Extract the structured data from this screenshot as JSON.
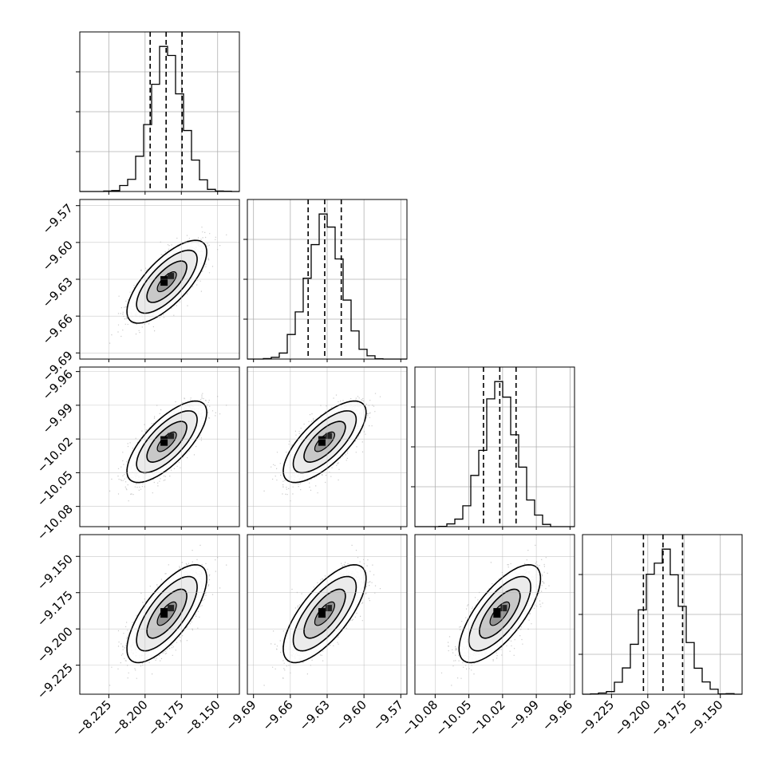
{
  "chart_data": {
    "type": "corner",
    "title": "",
    "grid": true,
    "quantiles": [
      0.16,
      0.5,
      0.84
    ],
    "parameters": [
      {
        "range": [
          -8.245,
          -8.135
        ],
        "ticks": [
          "-8.225",
          "-8.200",
          "-8.175",
          "-8.150"
        ],
        "tick_values": [
          -8.225,
          -8.2,
          -8.175,
          -8.15
        ],
        "mean": -8.185,
        "std": 0.011,
        "q16": -8.1965,
        "q50": -8.1855,
        "q84": -8.1745
      },
      {
        "range": [
          -9.695,
          -9.565
        ],
        "ticks": [
          "-9.57",
          "-9.60",
          "-9.63",
          "-9.66",
          "-9.69"
        ],
        "tick_values": [
          -9.57,
          -9.6,
          -9.63,
          -9.66,
          -9.69
        ],
        "mean": -9.632,
        "std": 0.0135,
        "q16": -9.6455,
        "q50": -9.632,
        "q84": -9.6185
      },
      {
        "range": [
          -10.098,
          -9.956
        ],
        "ticks": [
          "-9.96",
          "-9.99",
          "-10.02",
          "-10.05",
          "-10.08"
        ],
        "tick_values": [
          -9.96,
          -9.99,
          -10.02,
          -10.05,
          -10.08
        ],
        "mean": -10.0225,
        "std": 0.0145,
        "q16": -10.037,
        "q50": -10.0225,
        "q84": -10.008
      },
      {
        "range": [
          -9.245,
          -9.135
        ],
        "ticks": [
          "-9.150",
          "-9.175",
          "-9.200",
          "-9.225"
        ],
        "tick_values": [
          -9.15,
          -9.175,
          -9.2,
          -9.225
        ],
        "mean": -9.1895,
        "std": 0.0135,
        "q16": -9.203,
        "q50": -9.1895,
        "q84": -9.176
      }
    ],
    "correlation": 0.72,
    "colors": {
      "line": "#000000",
      "scatter": "#8a8a8a",
      "grid": "#b0b0b0"
    }
  }
}
